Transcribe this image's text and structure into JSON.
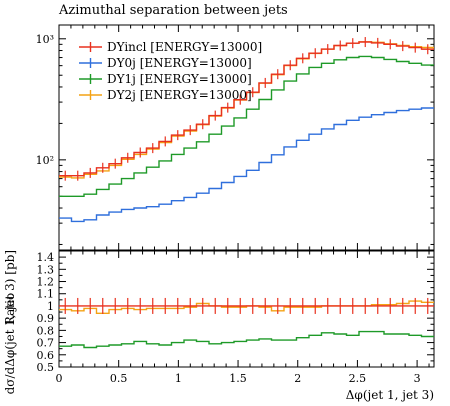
{
  "chart_data": [
    {
      "type": "line",
      "title": "Azimuthal separation between jets",
      "xlabel": "",
      "ylabel": "dσ/dΔφ(jet 1, jet 3) [pb]",
      "xlim": [
        0,
        3.1416
      ],
      "ylim": [
        18,
        1300
      ],
      "yscale": "log",
      "grid": false,
      "legend_position": "top-left",
      "x_ticks": [
        "0",
        "0.5",
        "1",
        "1.5",
        "2",
        "2.5",
        "3"
      ],
      "y_ticks": [
        "10²",
        "10³"
      ],
      "x_edges": [
        0,
        0.1047,
        0.2094,
        0.3142,
        0.4189,
        0.5236,
        0.6283,
        0.733,
        0.8378,
        0.9425,
        1.0472,
        1.1519,
        1.2566,
        1.3614,
        1.4661,
        1.5708,
        1.6755,
        1.7802,
        1.885,
        1.9897,
        2.0944,
        2.1991,
        2.3038,
        2.4086,
        2.5133,
        2.618,
        2.7227,
        2.8274,
        2.9322,
        3.0369,
        3.1416
      ],
      "series": [
        {
          "name": "DYincl [ENERGY=13000]",
          "color": "#e8311f",
          "errorbars": true,
          "values": [
            74,
            74,
            78,
            86,
            93,
            104,
            115,
            125,
            142,
            160,
            176,
            197,
            232,
            270,
            314,
            362,
            432,
            510,
            605,
            690,
            760,
            822,
            880,
            920,
            940,
            925,
            900,
            870,
            845,
            820
          ]
        },
        {
          "name": "DY0j [ENERGY=13000]",
          "color": "#2f6fdc",
          "errorbars": false,
          "values": [
            33,
            31,
            32,
            35,
            37,
            39,
            40,
            41,
            43,
            46,
            49,
            53,
            58,
            65,
            73,
            82,
            95,
            110,
            128,
            145,
            163,
            180,
            196,
            212,
            225,
            236,
            246,
            255,
            262,
            268
          ]
        },
        {
          "name": "DY1j [ENERGY=13000]",
          "color": "#1e9a28",
          "errorbars": false,
          "values": [
            50,
            50,
            52,
            57,
            63,
            70,
            78,
            87,
            98,
            111,
            125,
            141,
            163,
            190,
            222,
            262,
            315,
            378,
            447,
            513,
            580,
            628,
            670,
            700,
            716,
            700,
            676,
            649,
            627,
            606
          ]
        },
        {
          "name": "DY2j [ENERGY=13000]",
          "color": "#f4a214",
          "errorbars": false,
          "values": [
            72,
            71,
            76,
            81,
            90,
            101,
            111,
            123,
            139,
            157,
            173,
            195,
            230,
            268,
            312,
            360,
            430,
            505,
            600,
            684,
            758,
            820,
            878,
            920,
            945,
            935,
            910,
            880,
            860,
            848
          ]
        }
      ]
    },
    {
      "type": "line",
      "title": "",
      "xlabel": "Δφ(jet 1, jet 3)",
      "ylabel": "Ratio",
      "xlim": [
        0,
        3.1416
      ],
      "ylim": [
        0.5,
        1.45
      ],
      "grid": false,
      "x_ticks": [
        "0",
        "0.5",
        "1",
        "1.5",
        "2",
        "2.5",
        "3"
      ],
      "y_ticks": [
        "0.5",
        "0.6",
        "0.7",
        "0.8",
        "0.9",
        "1",
        "1.1",
        "1.2",
        "1.3",
        "1.4"
      ],
      "series": [
        {
          "name": "DYincl [ENERGY=13000]",
          "color": "#e8311f",
          "errorbars": true,
          "values": [
            1,
            1,
            1,
            1,
            1,
            1,
            1,
            1,
            1,
            1,
            1,
            1,
            1,
            1,
            1,
            1,
            1,
            1,
            1,
            1,
            1,
            1,
            1,
            1,
            1,
            1,
            1,
            1,
            1,
            1
          ]
        },
        {
          "name": "DY1j [ENERGY=13000]",
          "color": "#1e9a28",
          "errorbars": false,
          "values": [
            0.67,
            0.68,
            0.66,
            0.67,
            0.68,
            0.69,
            0.71,
            0.69,
            0.68,
            0.7,
            0.72,
            0.71,
            0.69,
            0.7,
            0.71,
            0.72,
            0.73,
            0.72,
            0.72,
            0.74,
            0.76,
            0.78,
            0.77,
            0.76,
            0.79,
            0.79,
            0.77,
            0.77,
            0.76,
            0.75
          ]
        },
        {
          "name": "DY2j [ENERGY=13000]",
          "color": "#f4a214",
          "errorbars": false,
          "values": [
            0.97,
            0.96,
            0.98,
            0.94,
            0.97,
            0.98,
            0.97,
            0.98,
            0.98,
            0.98,
            0.99,
            1.02,
            1.0,
            0.99,
            0.99,
            1.0,
            0.99,
            0.96,
            0.99,
            0.99,
            0.99,
            1.0,
            1.0,
            1.0,
            1.0,
            1.01,
            1.01,
            1.02,
            1.04,
            1.03
          ]
        }
      ]
    }
  ]
}
